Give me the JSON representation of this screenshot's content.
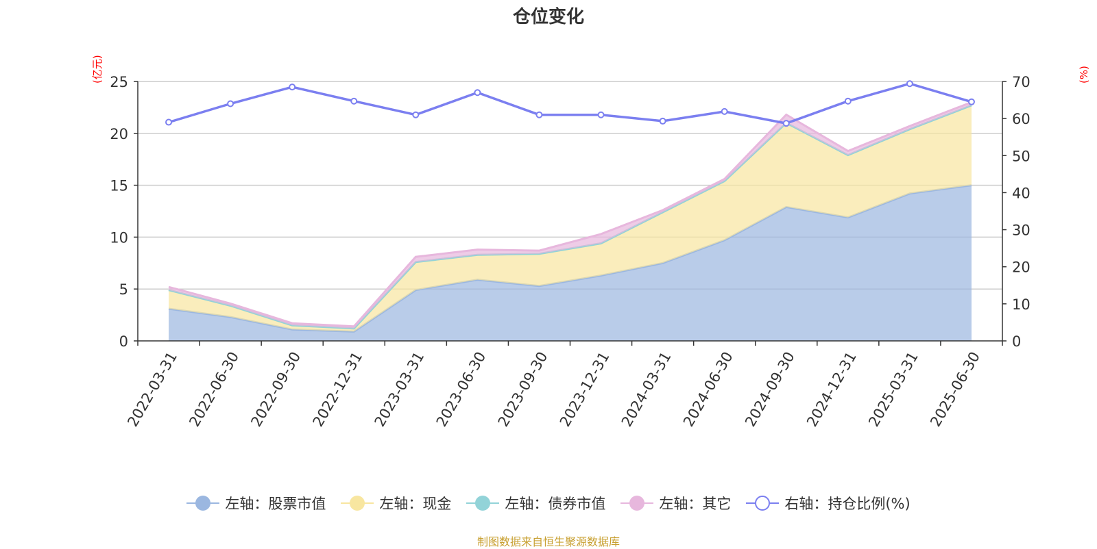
{
  "title": "仓位变化",
  "left_axis_unit": "(亿元)",
  "right_axis_unit": "(%)",
  "source": "制图数据来自恒生聚源数据库",
  "chart_data": {
    "type": "area",
    "title": "仓位变化",
    "categories": [
      "2022-03-31",
      "2022-06-30",
      "2022-09-30",
      "2022-12-31",
      "2023-03-31",
      "2023-06-30",
      "2023-09-30",
      "2023-12-31",
      "2024-03-31",
      "2024-06-30",
      "2024-09-30",
      "2024-12-31",
      "2025-03-31",
      "2025-06-30"
    ],
    "y_left": {
      "label": "(亿元)",
      "ylim": [
        0,
        25
      ],
      "ticks": [
        0,
        5,
        10,
        15,
        20,
        25
      ]
    },
    "y_right": {
      "label": "(%)",
      "ylim": [
        0,
        70
      ],
      "ticks": [
        0,
        10,
        20,
        30,
        40,
        50,
        60,
        70
      ]
    },
    "stacked": true,
    "grid": true,
    "legend_position": "bottom",
    "series": [
      {
        "name": "左轴：股票市值",
        "axis": "left",
        "type": "area",
        "color": "#9bb7e0",
        "values": [
          3.1,
          2.3,
          1.1,
          0.9,
          4.9,
          5.9,
          5.3,
          6.3,
          7.5,
          9.7,
          12.9,
          11.9,
          14.2,
          15.0
        ]
      },
      {
        "name": "左轴：现金",
        "axis": "left",
        "type": "area",
        "color": "#f8e6a0",
        "values": [
          1.8,
          1.1,
          0.4,
          0.3,
          2.7,
          2.4,
          3.1,
          3.1,
          4.9,
          5.7,
          8.1,
          6.0,
          6.2,
          7.7
        ]
      },
      {
        "name": "左轴：债券市值",
        "axis": "left",
        "type": "area",
        "color": "#92d3d8",
        "values": [
          0,
          0,
          0,
          0,
          0,
          0,
          0,
          0,
          0,
          0,
          0,
          0,
          0,
          0
        ]
      },
      {
        "name": "左轴：其它",
        "axis": "left",
        "type": "area",
        "color": "#e7b7dd",
        "values": [
          0.3,
          0.2,
          0.2,
          0.2,
          0.5,
          0.5,
          0.3,
          0.9,
          0.2,
          0.2,
          0.8,
          0.4,
          0.3,
          0.3
        ]
      },
      {
        "name": "右轴：持仓比例(%)",
        "axis": "right",
        "type": "line",
        "color": "#7b7ff0",
        "values": [
          59.0,
          64.0,
          68.5,
          64.7,
          61.0,
          67.0,
          61.0,
          61.0,
          59.3,
          61.9,
          58.7,
          64.7,
          69.4,
          64.5
        ]
      }
    ]
  }
}
